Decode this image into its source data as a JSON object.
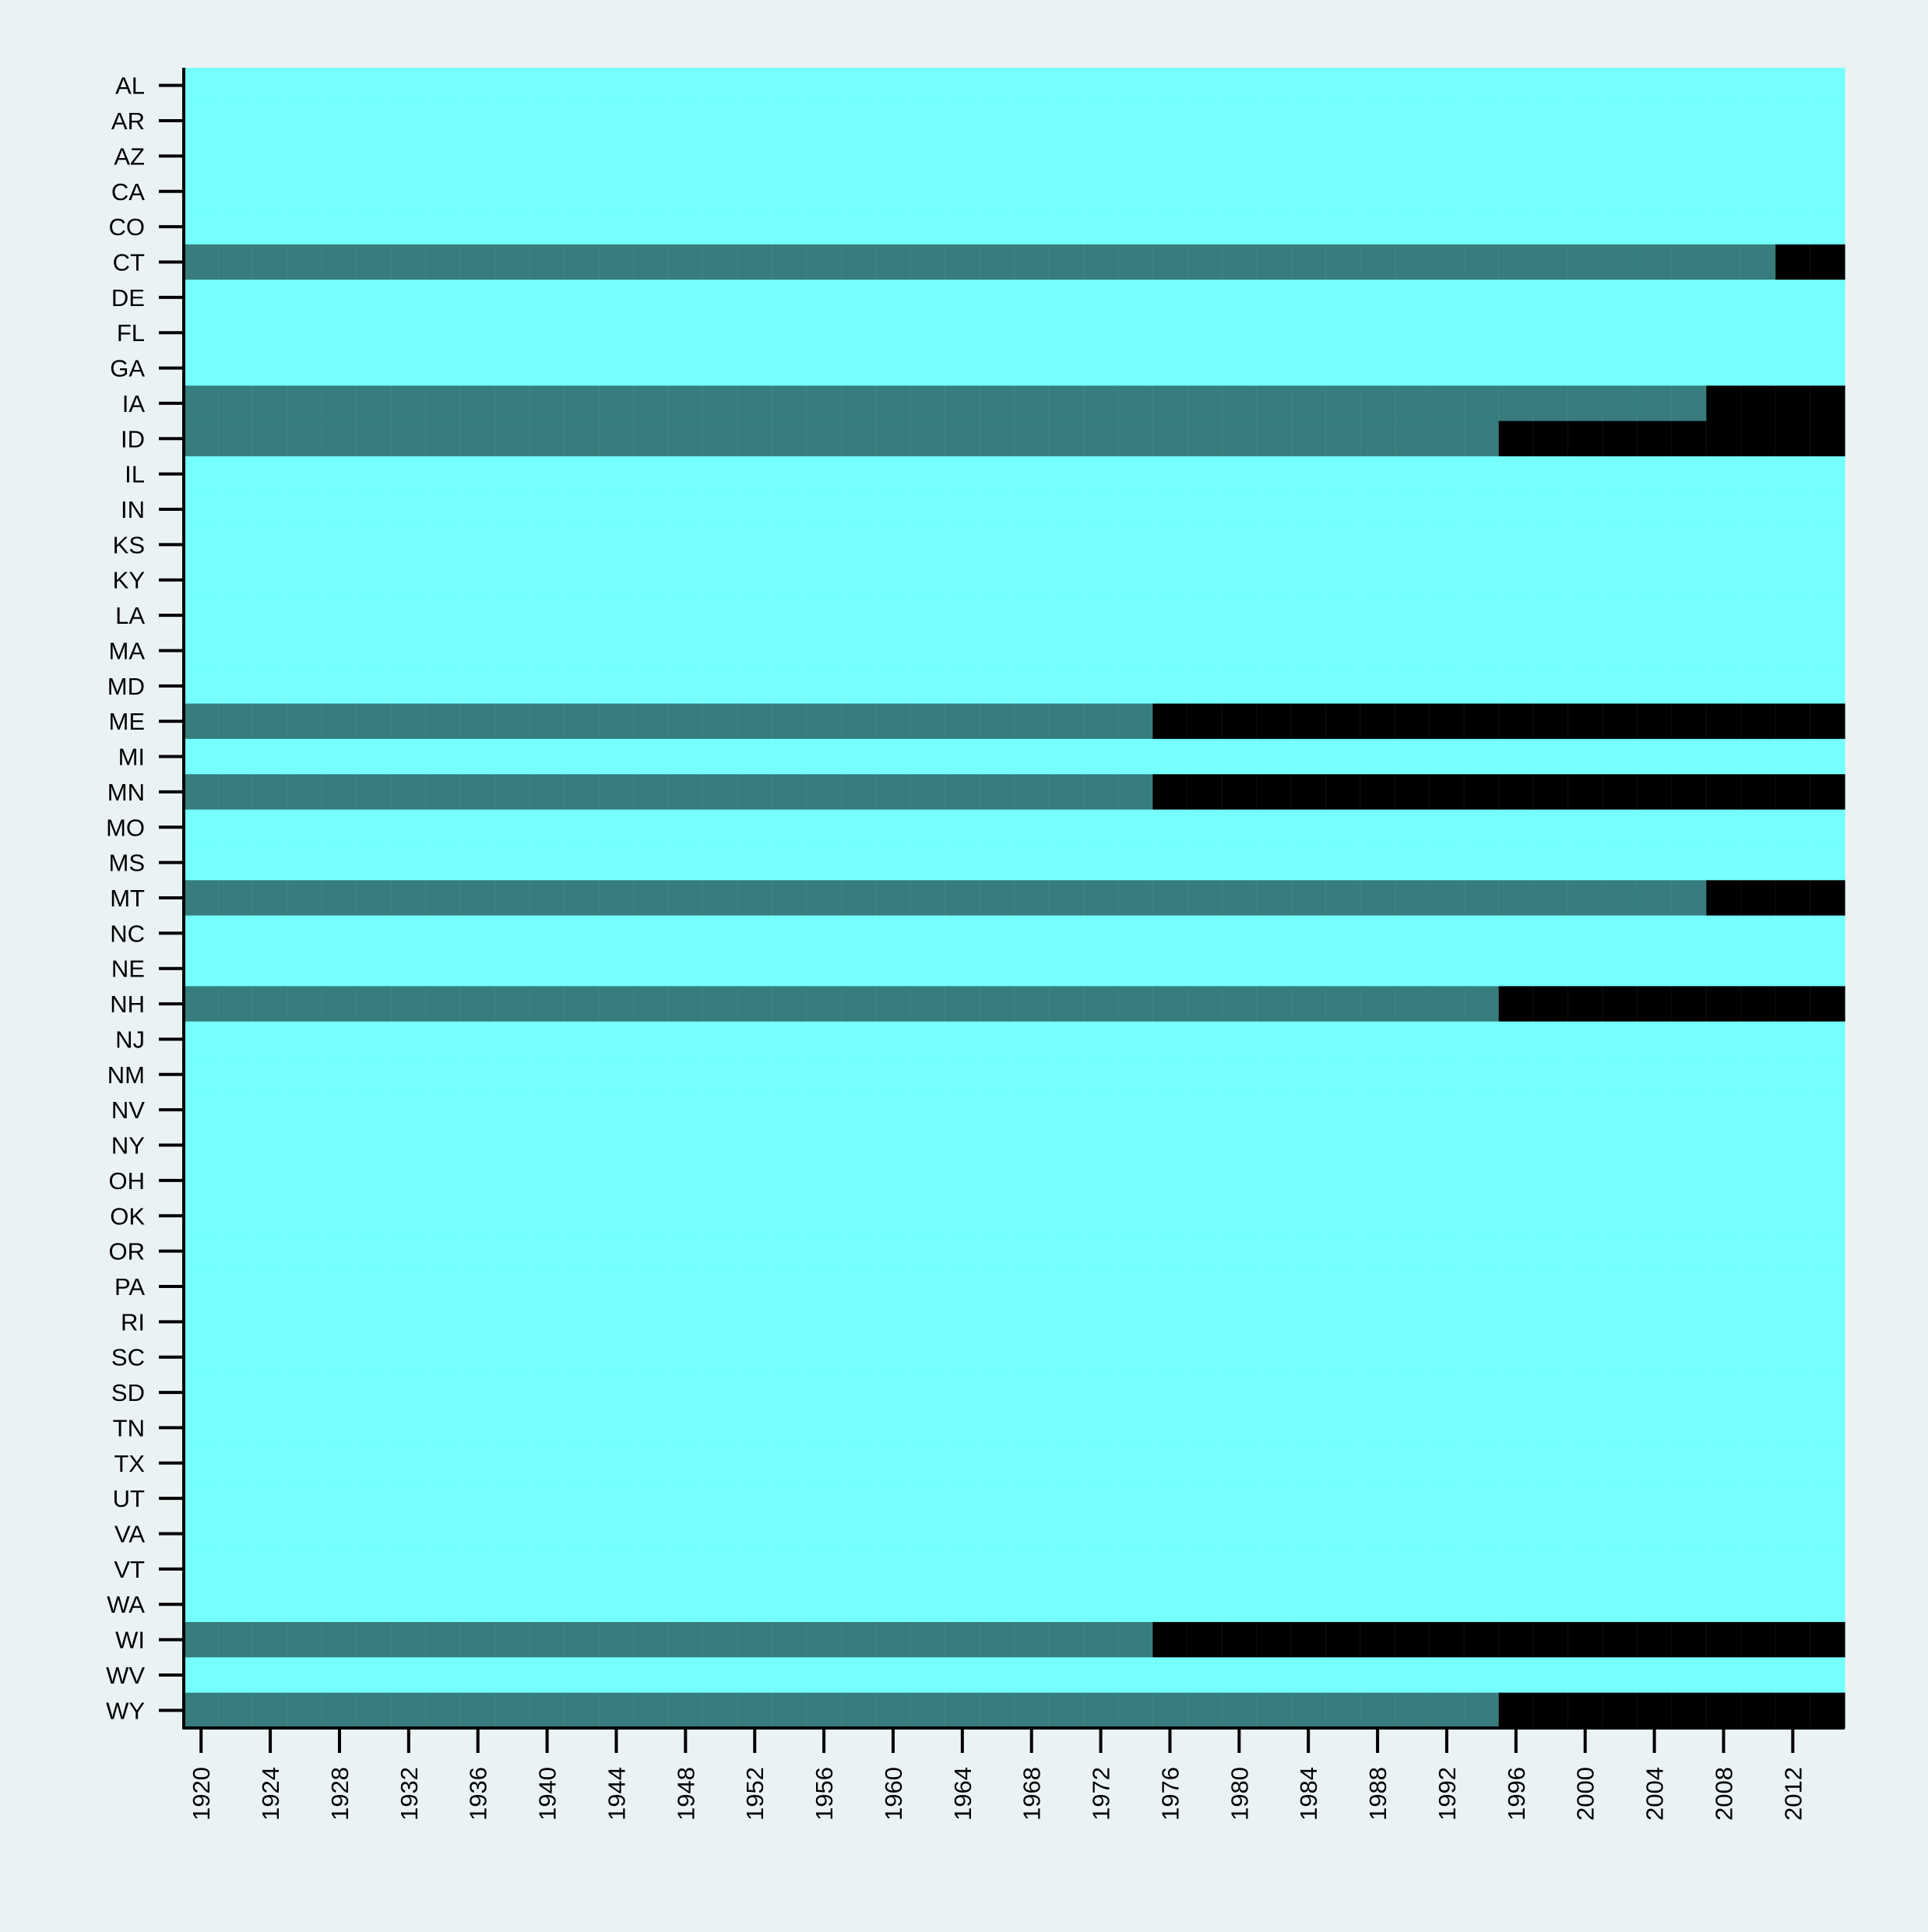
{
  "chart_data": {
    "type": "heatmap",
    "title": "",
    "xlabel": "",
    "ylabel": "",
    "x_period_start": 1918,
    "x_period_step": 2,
    "x_period_count": 48,
    "x_ticks": [
      1920,
      1924,
      1928,
      1932,
      1936,
      1940,
      1944,
      1948,
      1952,
      1956,
      1960,
      1964,
      1968,
      1972,
      1976,
      1980,
      1984,
      1988,
      1992,
      1996,
      2000,
      2004,
      2008,
      2012
    ],
    "x_tick_labels": [
      "1920",
      "1924",
      "1928",
      "1932",
      "1936",
      "1940",
      "1944",
      "1948",
      "1952",
      "1956",
      "1960",
      "1964",
      "1968",
      "1972",
      "1976",
      "1980",
      "1984",
      "1988",
      "1992",
      "1996",
      "2000",
      "2004",
      "2008",
      "2012"
    ],
    "rows": [
      "AL",
      "AR",
      "AZ",
      "CA",
      "CO",
      "CT",
      "DE",
      "FL",
      "GA",
      "IA",
      "ID",
      "IL",
      "IN",
      "KS",
      "KY",
      "LA",
      "MA",
      "MD",
      "ME",
      "MI",
      "MN",
      "MO",
      "MS",
      "MT",
      "NC",
      "NE",
      "NH",
      "NJ",
      "NM",
      "NV",
      "NY",
      "OH",
      "OK",
      "OR",
      "PA",
      "RI",
      "SC",
      "SD",
      "TN",
      "TX",
      "UT",
      "VA",
      "VT",
      "WA",
      "WI",
      "WV",
      "WY"
    ],
    "value_colors": {
      "0": "#75FFFF",
      "1": "#377D7D",
      "2": "#000000"
    },
    "row_segments": {
      "CT": [
        {
          "from": 1918,
          "to": 2010,
          "value": 1
        },
        {
          "from": 2010,
          "to": 2014,
          "value": 2
        }
      ],
      "IA": [
        {
          "from": 1918,
          "to": 2006,
          "value": 1
        },
        {
          "from": 2006,
          "to": 2014,
          "value": 2
        }
      ],
      "ID": [
        {
          "from": 1918,
          "to": 1994,
          "value": 1
        },
        {
          "from": 1994,
          "to": 2014,
          "value": 2
        }
      ],
      "ME": [
        {
          "from": 1918,
          "to": 1974,
          "value": 1
        },
        {
          "from": 1974,
          "to": 2014,
          "value": 2
        }
      ],
      "MN": [
        {
          "from": 1918,
          "to": 1974,
          "value": 1
        },
        {
          "from": 1974,
          "to": 2014,
          "value": 2
        }
      ],
      "MT": [
        {
          "from": 1918,
          "to": 2006,
          "value": 1
        },
        {
          "from": 2006,
          "to": 2014,
          "value": 2
        }
      ],
      "NH": [
        {
          "from": 1918,
          "to": 1994,
          "value": 1
        },
        {
          "from": 1994,
          "to": 2014,
          "value": 2
        }
      ],
      "WI": [
        {
          "from": 1918,
          "to": 1974,
          "value": 1
        },
        {
          "from": 1974,
          "to": 2014,
          "value": 2
        }
      ],
      "WY": [
        {
          "from": 1918,
          "to": 1994,
          "value": 1
        },
        {
          "from": 1994,
          "to": 2014,
          "value": 2
        }
      ]
    },
    "default_value": 0,
    "colors": {
      "background": "#EAF2F3",
      "axis": "#000000"
    }
  }
}
